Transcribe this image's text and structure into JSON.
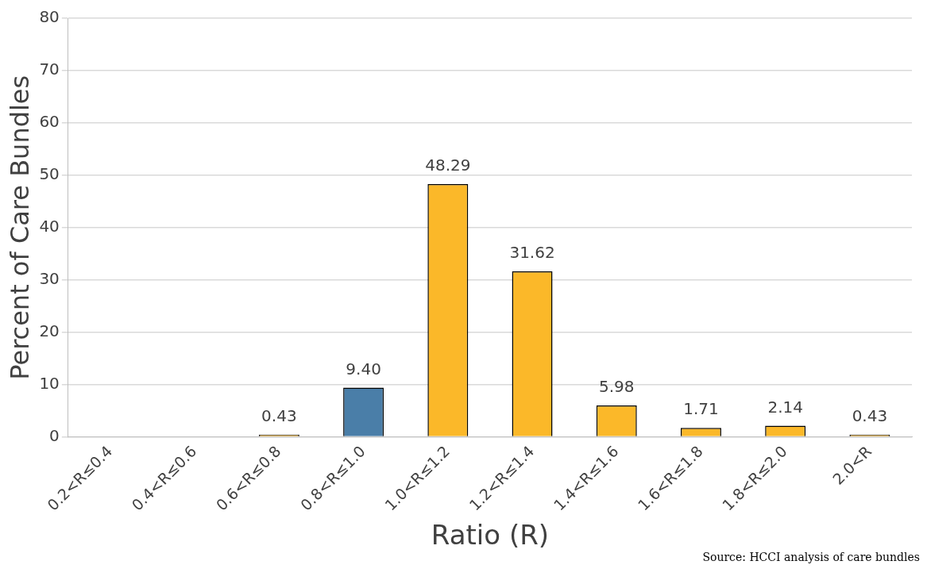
{
  "chart_data": {
    "type": "bar",
    "categories": [
      "0.2<R≤0.4",
      "0.4<R≤0.6",
      "0.6<R≤0.8",
      "0.8<R≤1.0",
      "1.0<R≤1.2",
      "1.2<R≤1.4",
      "1.4<R≤1.6",
      "1.6<R≤1.8",
      "1.8<R≤2.0",
      "2.0<R"
    ],
    "values": [
      0,
      0,
      0.43,
      9.4,
      48.29,
      31.62,
      5.98,
      1.71,
      2.14,
      0.43
    ],
    "value_labels": [
      null,
      null,
      "0.43",
      "9.40",
      "48.29",
      "31.62",
      "5.98",
      "1.71",
      "2.14",
      "0.43"
    ],
    "colors": [
      "#fbb829",
      "#fbb829",
      "#fbb829",
      "#4a7ea8",
      "#fbb829",
      "#fbb829",
      "#fbb829",
      "#fbb829",
      "#fbb829",
      "#fbb829"
    ],
    "xlabel": "Ratio (R)",
    "ylabel": "Percent of Care Bundles",
    "ylim": [
      0,
      80
    ],
    "yticks": [
      0,
      10,
      20,
      30,
      40,
      50,
      60,
      70,
      80
    ],
    "grid": "y",
    "legend": false,
    "annotations": [
      "Source: HCCI analysis of care bundles"
    ]
  }
}
